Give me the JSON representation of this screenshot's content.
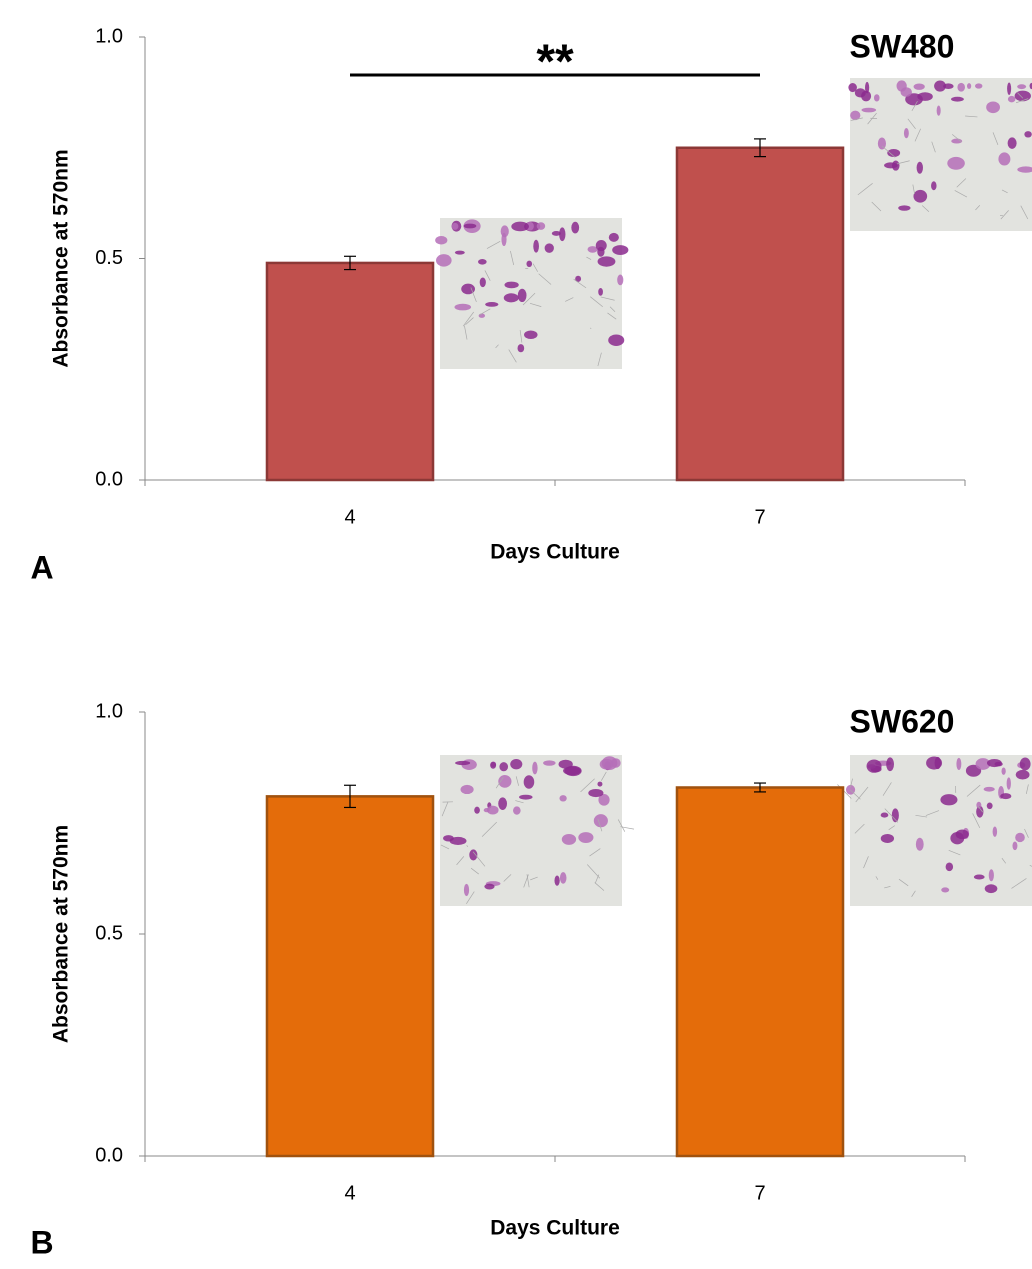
{
  "chart_data": [
    {
      "type": "bar",
      "panel_label": "A",
      "title": "SW480",
      "annotation": "**",
      "xlabel": "Days Culture",
      "ylabel": "Absorbance at 570nm",
      "categories": [
        "4",
        "7"
      ],
      "values": [
        0.49,
        0.75
      ],
      "errors": [
        0.015,
        0.02
      ],
      "color": "#c0504d",
      "edge_color": "#8c3836",
      "ylim": [
        0,
        1
      ],
      "yticks": [
        {
          "value": 0,
          "label": "0.0"
        },
        {
          "value": 0.5,
          "label": "0.5"
        },
        {
          "value": 1,
          "label": "1.0"
        }
      ],
      "grid": false
    },
    {
      "type": "bar",
      "panel_label": "B",
      "title": "SW620",
      "xlabel": "Days Culture",
      "ylabel": "Absorbance at 570nm",
      "categories": [
        "4",
        "7"
      ],
      "values": [
        0.81,
        0.83
      ],
      "errors": [
        0.025,
        0.01
      ],
      "color": "#e46c0a",
      "edge_color": "#a0520f",
      "ylim": [
        0,
        1
      ],
      "yticks": [
        {
          "value": 0,
          "label": "0.0"
        },
        {
          "value": 0.5,
          "label": "0.5"
        },
        {
          "value": 1,
          "label": "1.0"
        }
      ],
      "grid": false
    }
  ]
}
